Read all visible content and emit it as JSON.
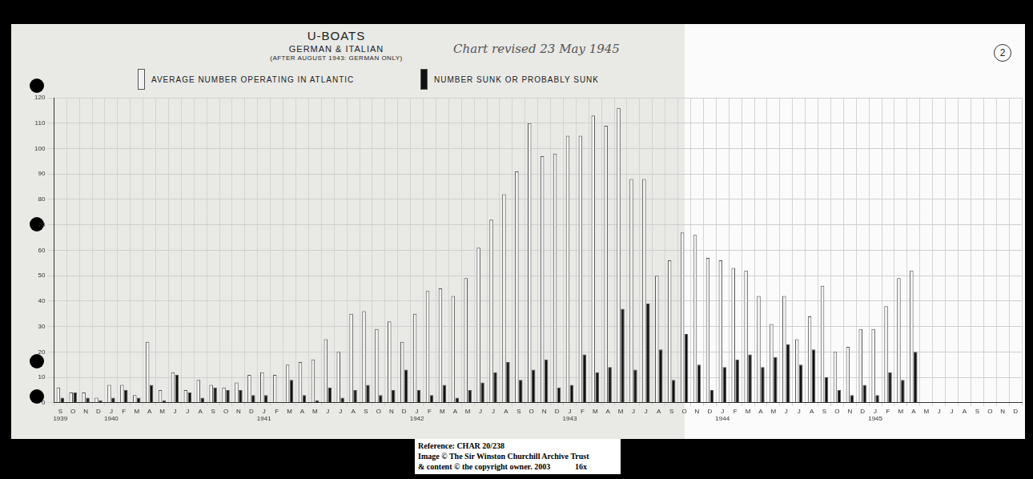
{
  "chart_data": {
    "type": "bar",
    "title": "U-BOATS",
    "subtitle": [
      "GERMAN & ITALIAN",
      "(AFTER AUGUST 1943: GERMAN ONLY)"
    ],
    "note": "Chart revised 23 May 1945",
    "page_number": "2",
    "source": [
      "Reference: CHAR 20/238",
      "Image © The Sir Winston Churchill Archive Trust",
      "& content © the copyright owner. 2003",
      "16x"
    ],
    "categories": [
      [
        "S",
        "1939"
      ],
      "O",
      "N",
      "D",
      [
        "J",
        "1940"
      ],
      "F",
      "M",
      "A",
      "M",
      "J",
      "J",
      "A",
      "S",
      "O",
      "N",
      "D",
      [
        "J",
        "1941"
      ],
      "F",
      "M",
      "A",
      "M",
      "J",
      "J",
      "A",
      "S",
      "O",
      "N",
      "D",
      [
        "J",
        "1942"
      ],
      "F",
      "M",
      "A",
      "M",
      "J",
      "J",
      "A",
      "S",
      "O",
      "N",
      "D",
      [
        "J",
        "1943"
      ],
      "F",
      "M",
      "A",
      "M",
      "J",
      "J",
      "A",
      "S",
      "O",
      "N",
      "D",
      [
        "J",
        "1944"
      ],
      "F",
      "M",
      "A",
      "M",
      "J",
      "J",
      "A",
      "S",
      "O",
      "N",
      "D",
      [
        "J",
        "1945"
      ],
      "F",
      "M",
      "A",
      "M",
      "J",
      "J",
      "A",
      "S",
      "O",
      "N",
      "D"
    ],
    "series": [
      {
        "name": "AVERAGE NUMBER OPERATING IN ATLANTIC",
        "color": "#f2f2f2",
        "values": [
          6,
          4,
          4,
          2,
          7,
          7,
          3,
          24,
          5,
          12,
          5,
          9,
          7,
          6,
          8,
          11,
          12,
          11,
          15,
          16,
          17,
          25,
          20,
          35,
          36,
          29,
          32,
          24,
          35,
          44,
          45,
          42,
          49,
          61,
          72,
          82,
          91,
          110,
          97,
          98,
          105,
          105,
          113,
          109,
          116,
          88,
          88,
          50,
          56,
          67,
          66,
          57,
          56,
          53,
          52,
          42,
          31,
          42,
          25,
          34,
          46,
          20,
          22,
          29,
          29,
          38,
          49,
          52,
          null,
          null,
          null,
          null,
          null,
          null,
          null,
          null
        ]
      },
      {
        "name": "NUMBER SUNK OR PROBABLY SUNK",
        "color": "#111111",
        "values": [
          2,
          4,
          2,
          1,
          2,
          5,
          2,
          7,
          1,
          11,
          4,
          2,
          6,
          5,
          5,
          3,
          3,
          0,
          9,
          3,
          1,
          6,
          2,
          5,
          7,
          3,
          5,
          13,
          5,
          3,
          7,
          2,
          5,
          8,
          12,
          16,
          9,
          13,
          17,
          6,
          7,
          19,
          12,
          14,
          37,
          13,
          39,
          21,
          9,
          27,
          15,
          5,
          14,
          17,
          19,
          14,
          18,
          23,
          15,
          21,
          10,
          5,
          3,
          7,
          3,
          12,
          9,
          20,
          null,
          null,
          null,
          null,
          null,
          null,
          null,
          null
        ]
      }
    ],
    "ylim": [
      0,
      120
    ],
    "yticks": [
      0,
      10,
      20,
      30,
      40,
      50,
      60,
      70,
      80,
      90,
      100,
      110,
      120
    ],
    "grid": true,
    "legend": "top"
  }
}
